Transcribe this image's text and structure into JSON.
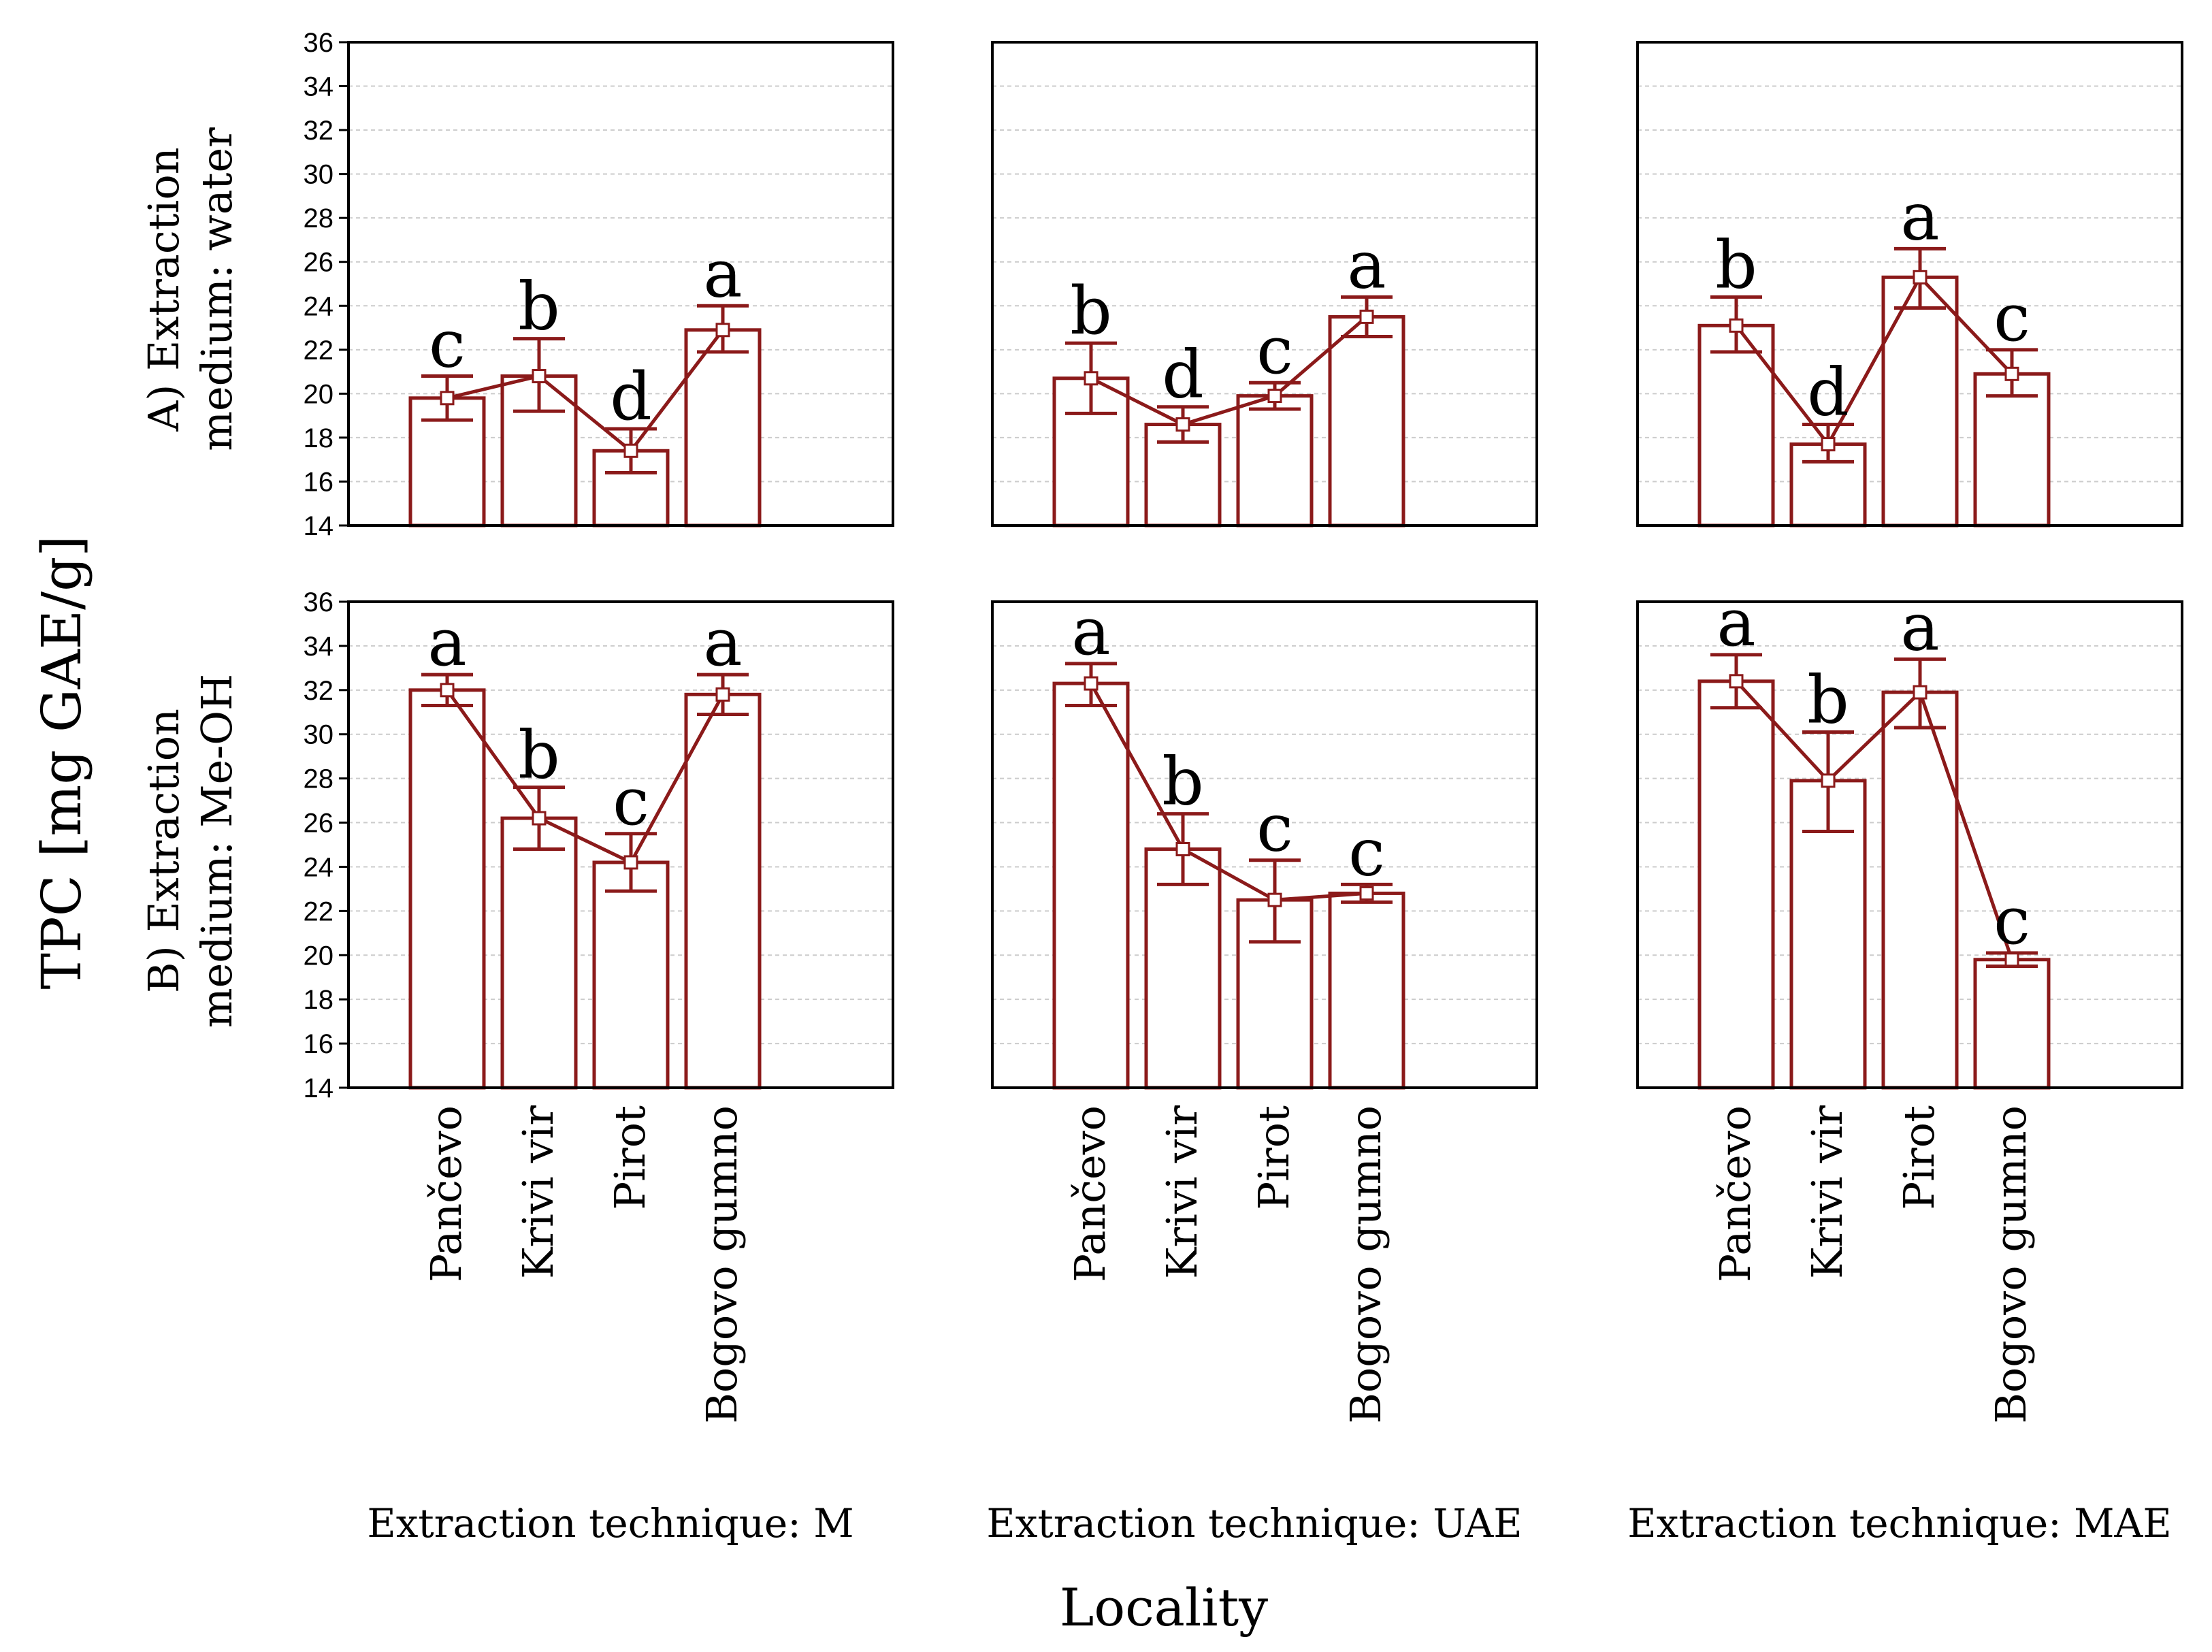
{
  "colors": {
    "accent": "#8B1A1A",
    "grid": "#cccccc",
    "axis": "#000000",
    "background": "#ffffff"
  },
  "chart_data": {
    "type": "bar",
    "ylabel": "TPC [mg GAE/g]",
    "xlabel": "Locality",
    "ylim": [
      14,
      36
    ],
    "yticks": [
      14,
      16,
      18,
      20,
      22,
      24,
      26,
      28,
      30,
      32,
      34,
      36
    ],
    "categories": [
      "Pančevo",
      "Krivi vir",
      "Pirot",
      "Bogovo gumno"
    ],
    "rows": [
      {
        "label_line1": "A) Extraction",
        "label_line2": "medium: water"
      },
      {
        "label_line1": "B) Extraction",
        "label_line2": "medium: Me-OH"
      }
    ],
    "columns": [
      {
        "label": "Extraction technique: M"
      },
      {
        "label": "Extraction technique: UAE"
      },
      {
        "label": "Extraction technique: MAE"
      }
    ],
    "panels": [
      {
        "row": 0,
        "col": 0,
        "values": [
          19.8,
          20.8,
          17.4,
          22.9
        ],
        "err_low": [
          18.8,
          19.2,
          16.4,
          21.9
        ],
        "err_high": [
          20.8,
          22.5,
          18.4,
          24.0
        ],
        "letters": [
          "c",
          "b",
          "d",
          "a"
        ]
      },
      {
        "row": 0,
        "col": 1,
        "values": [
          20.7,
          18.6,
          19.9,
          23.5
        ],
        "err_low": [
          19.1,
          17.8,
          19.3,
          22.6
        ],
        "err_high": [
          22.3,
          19.4,
          20.5,
          24.4
        ],
        "letters": [
          "b",
          "d",
          "c",
          "a"
        ]
      },
      {
        "row": 0,
        "col": 2,
        "values": [
          23.1,
          17.7,
          25.3,
          20.9
        ],
        "err_low": [
          21.9,
          16.9,
          23.9,
          19.9
        ],
        "err_high": [
          24.4,
          18.6,
          26.6,
          22.0
        ],
        "letters": [
          "b",
          "d",
          "a",
          "c"
        ]
      },
      {
        "row": 1,
        "col": 0,
        "values": [
          32.0,
          26.2,
          24.2,
          31.8
        ],
        "err_low": [
          31.3,
          24.8,
          22.9,
          30.9
        ],
        "err_high": [
          32.7,
          27.6,
          25.5,
          32.7
        ],
        "letters": [
          "a",
          "b",
          "c",
          "a"
        ]
      },
      {
        "row": 1,
        "col": 1,
        "values": [
          32.3,
          24.8,
          22.5,
          22.8
        ],
        "err_low": [
          31.3,
          23.2,
          20.6,
          22.4
        ],
        "err_high": [
          33.2,
          26.4,
          24.3,
          23.2
        ],
        "letters": [
          "a",
          "b",
          "c",
          "c"
        ]
      },
      {
        "row": 1,
        "col": 2,
        "values": [
          32.4,
          27.9,
          31.9,
          19.8
        ],
        "err_low": [
          31.2,
          25.6,
          30.3,
          19.5
        ],
        "err_high": [
          33.6,
          30.1,
          33.4,
          20.1
        ],
        "letters": [
          "a",
          "b",
          "a",
          "c"
        ]
      }
    ]
  }
}
